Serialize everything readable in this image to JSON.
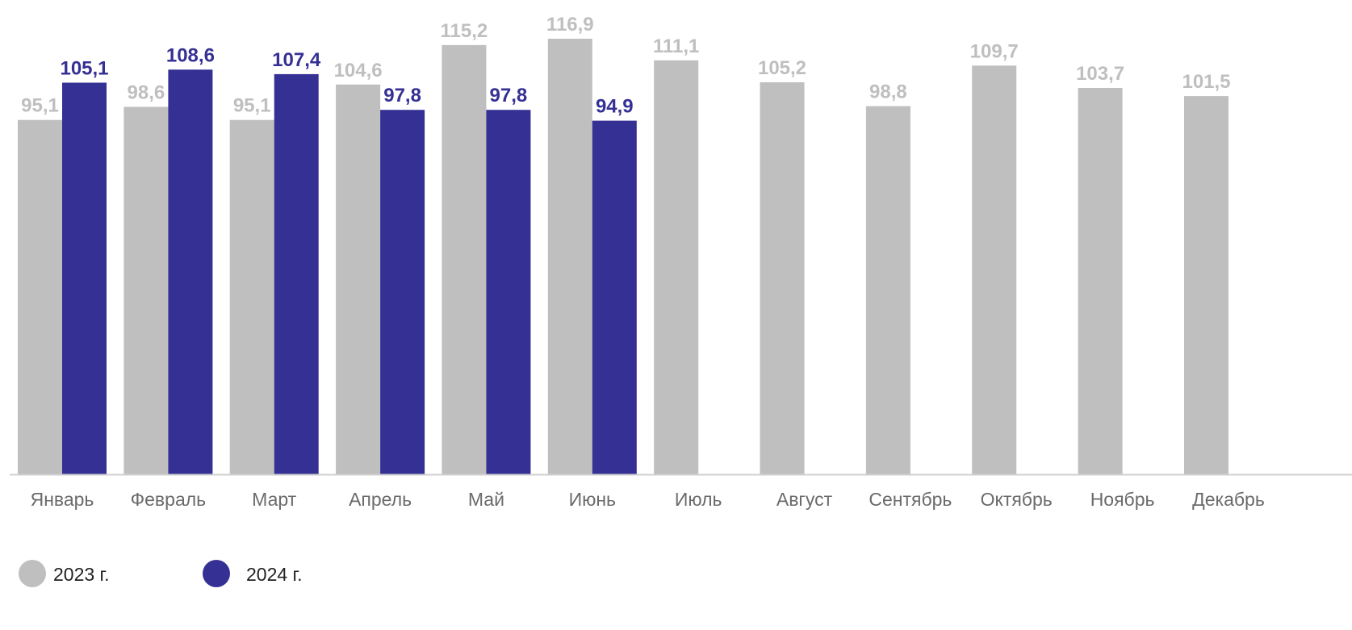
{
  "chart_data": {
    "type": "bar",
    "title": "",
    "xlabel": "",
    "ylabel": "",
    "ylim": [
      0,
      116.9
    ],
    "grid": false,
    "legend_position": "bottom-left",
    "categories": [
      "Январь",
      "Февраль",
      "Март",
      "Апрель",
      "Май",
      "Июнь",
      "Июль",
      "Август",
      "Сентябрь",
      "Октябрь",
      "Ноябрь",
      "Декабрь"
    ],
    "series": [
      {
        "name": "2023 г.",
        "color": "#bfbfbf",
        "label_color": "#bfbfbf",
        "values": [
          95.1,
          98.6,
          95.1,
          104.6,
          115.2,
          116.9,
          111.1,
          105.2,
          98.8,
          109.7,
          103.7,
          101.5
        ],
        "labels": [
          "95,1",
          "98,6",
          "95,1",
          "104,6",
          "115,2",
          "116,9",
          "111,1",
          "105,2",
          "98,8",
          "109,7",
          "103,7",
          "101,5"
        ]
      },
      {
        "name": "2024 г.",
        "color": "#353093",
        "label_color": "#353093",
        "values": [
          105.1,
          108.6,
          107.4,
          97.8,
          97.8,
          94.9,
          null,
          null,
          null,
          null,
          null,
          null
        ],
        "labels": [
          "105,1",
          "108,6",
          "107,4",
          "97,8",
          "97,8",
          "94,9",
          null,
          null,
          null,
          null,
          null,
          null
        ]
      }
    ]
  },
  "axis_color": "#d0d0d0",
  "category_label_color": "#6b6b6b",
  "legend_text_color": "#222222"
}
